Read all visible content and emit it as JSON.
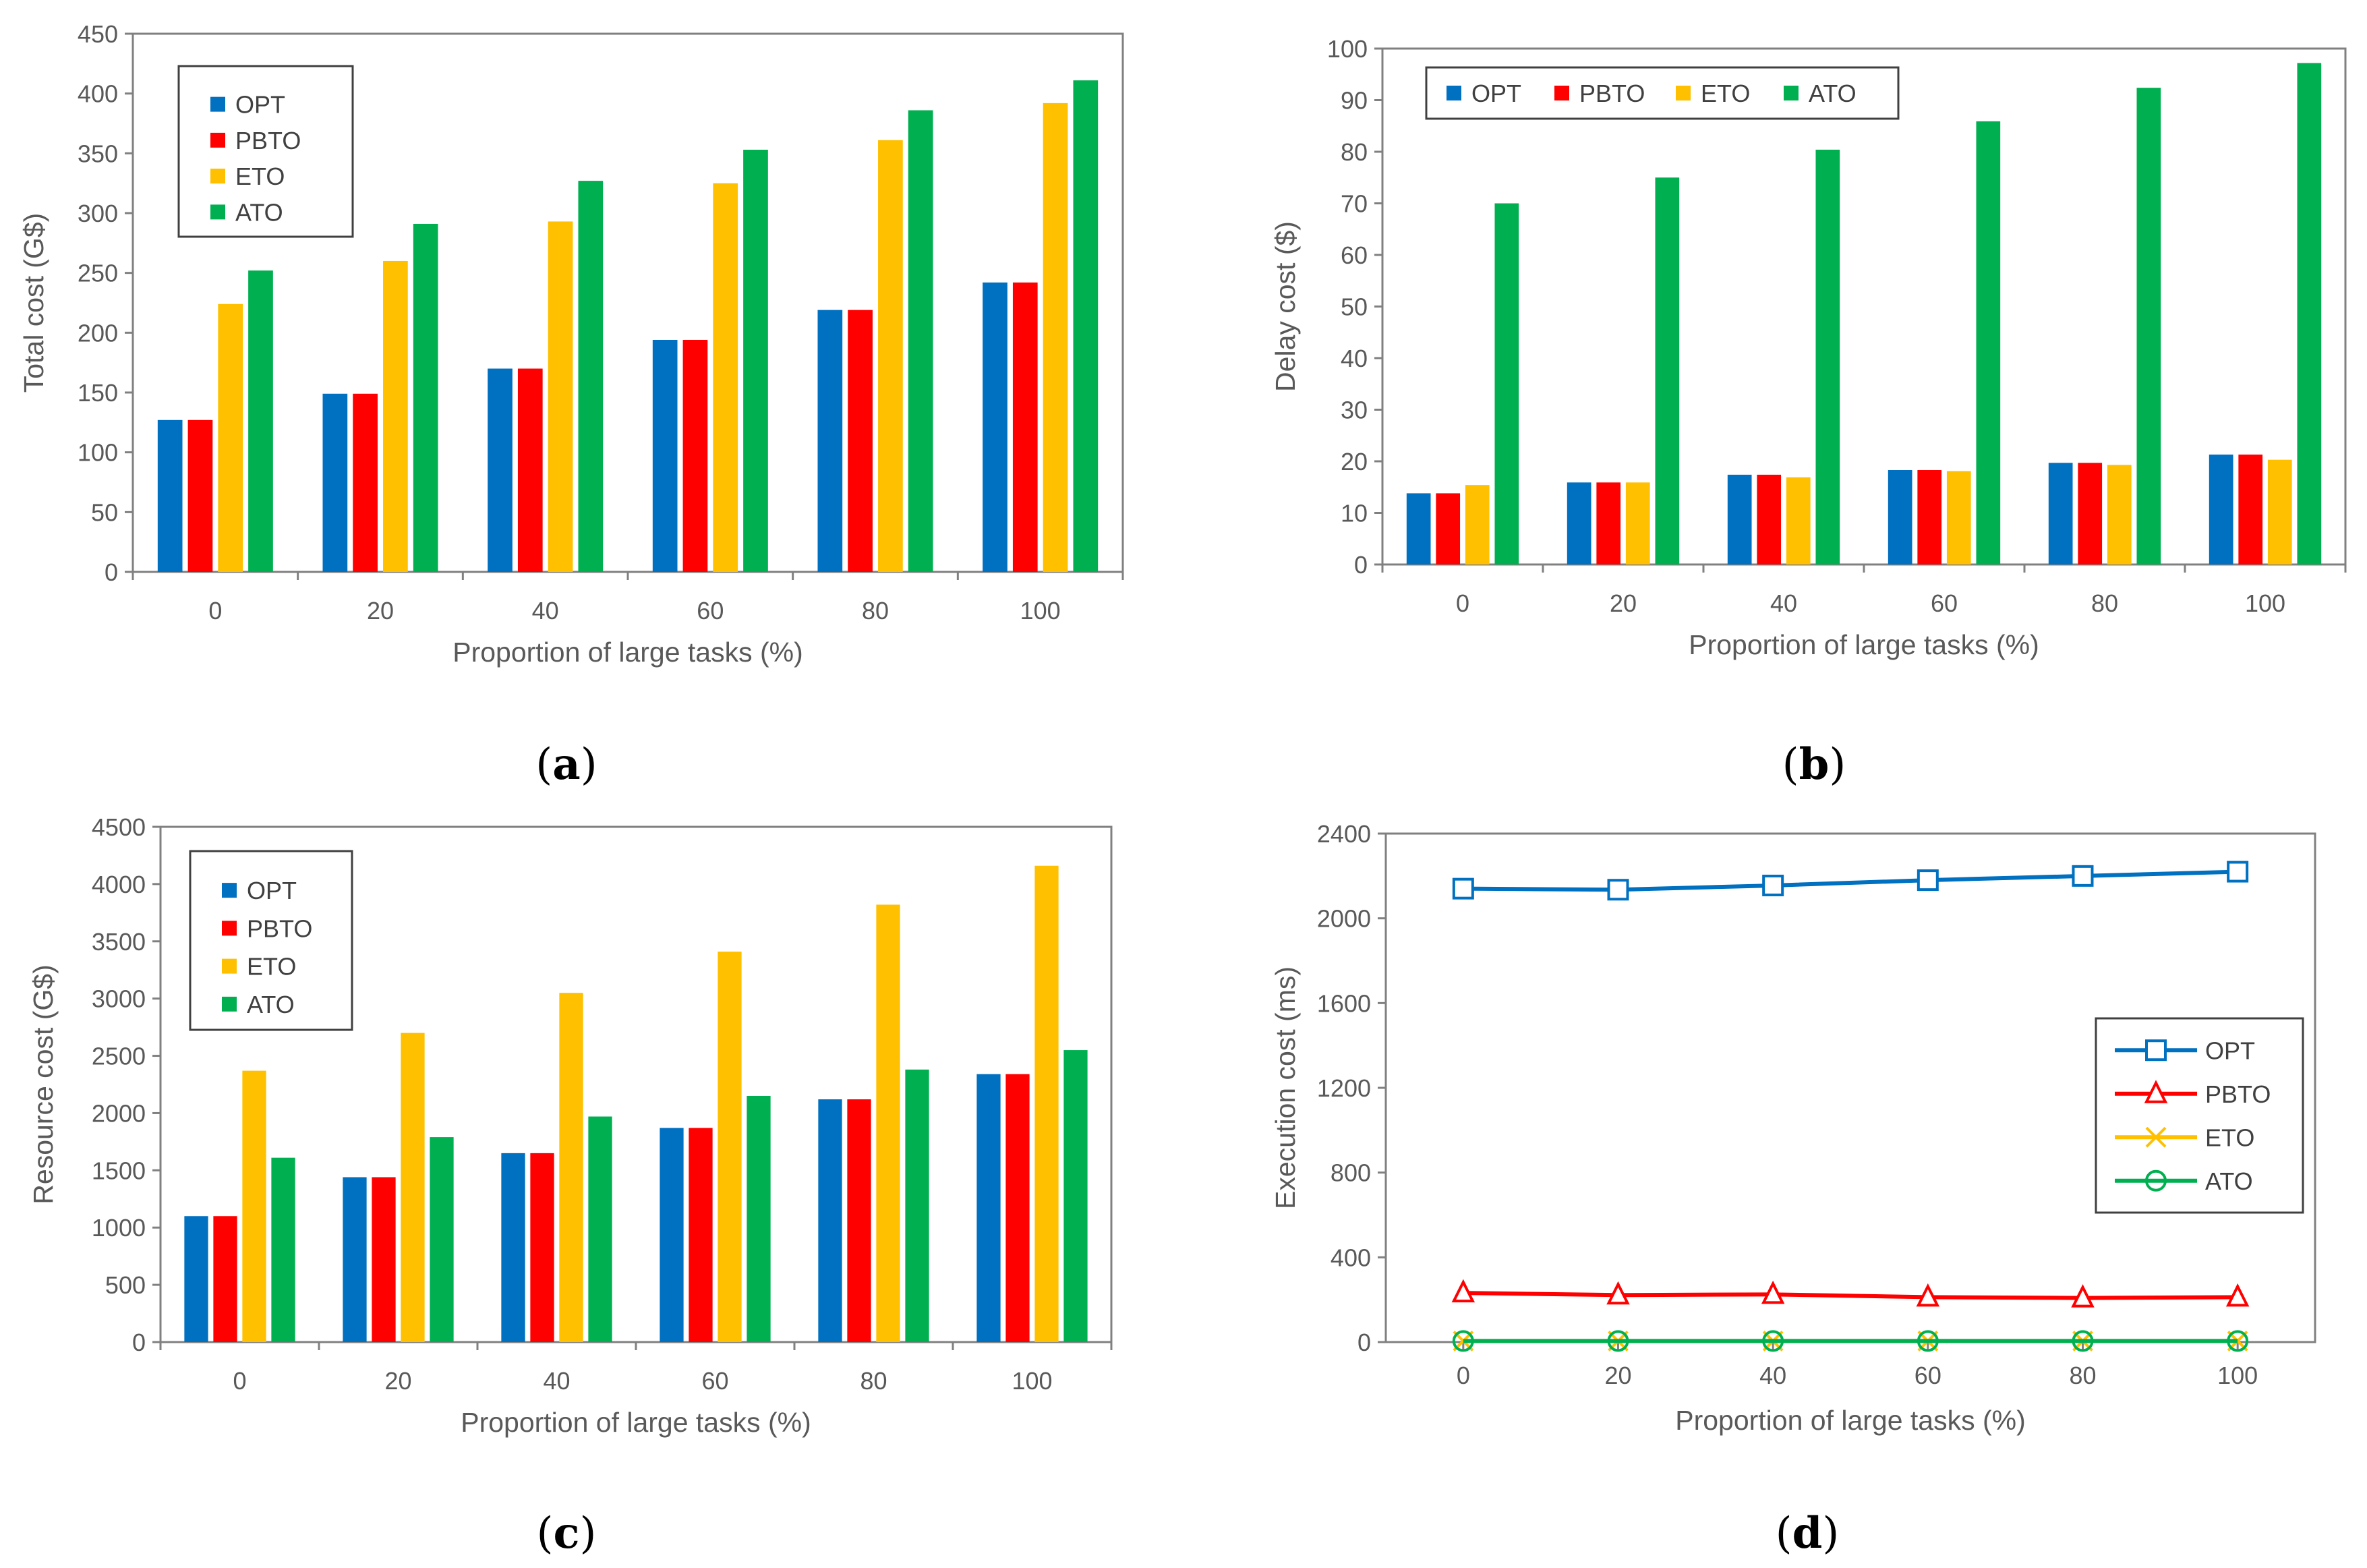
{
  "colors": {
    "OPT": "#0070C0",
    "PBTO": "#FF0000",
    "ETO": "#FFC000",
    "ATO": "#00B050",
    "axis": "#808080",
    "text": "#595959"
  },
  "chart_data": [
    {
      "id": "a",
      "type": "bar",
      "panel_label": "a",
      "xlabel": "Proportion of large tasks (%)",
      "ylabel": "Total cost (G$)",
      "ylim": [
        0,
        450
      ],
      "yticks": [
        0,
        50,
        100,
        150,
        200,
        250,
        300,
        350,
        400,
        450
      ],
      "categories": [
        "0",
        "20",
        "40",
        "60",
        "80",
        "100"
      ],
      "legend_position": "top-left",
      "legend_layout": "vertical",
      "series": [
        {
          "name": "OPT",
          "values": [
            127,
            149,
            170,
            194,
            219,
            242
          ]
        },
        {
          "name": "PBTO",
          "values": [
            127,
            149,
            170,
            194,
            219,
            242
          ]
        },
        {
          "name": "ETO",
          "values": [
            224,
            260,
            293,
            325,
            361,
            392
          ]
        },
        {
          "name": "ATO",
          "values": [
            252,
            291,
            327,
            353,
            386,
            411
          ]
        }
      ]
    },
    {
      "id": "b",
      "type": "bar",
      "panel_label": "b",
      "xlabel": "Proportion of large tasks (%)",
      "ylabel": "Delay cost ($)",
      "ylim": [
        0,
        100
      ],
      "yticks": [
        0,
        10,
        20,
        30,
        40,
        50,
        60,
        70,
        80,
        90,
        100
      ],
      "categories": [
        "0",
        "20",
        "40",
        "60",
        "80",
        "100"
      ],
      "legend_position": "top",
      "legend_layout": "horizontal",
      "series": [
        {
          "name": "OPT",
          "values": [
            13.8,
            15.9,
            17.4,
            18.3,
            19.7,
            21.3
          ]
        },
        {
          "name": "PBTO",
          "values": [
            13.8,
            15.9,
            17.4,
            18.3,
            19.7,
            21.3
          ]
        },
        {
          "name": "ETO",
          "values": [
            15.4,
            15.9,
            16.9,
            18.1,
            19.3,
            20.3
          ]
        },
        {
          "name": "ATO",
          "values": [
            70,
            75,
            80.4,
            85.9,
            92.4,
            97.2
          ]
        }
      ]
    },
    {
      "id": "c",
      "type": "bar",
      "panel_label": "c",
      "xlabel": "Proportion of large tasks (%)",
      "ylabel": "Resource cost (G$)",
      "ylim": [
        0,
        4500
      ],
      "yticks": [
        0,
        500,
        1000,
        1500,
        2000,
        2500,
        3000,
        3500,
        4000,
        4500
      ],
      "categories": [
        "0",
        "20",
        "40",
        "60",
        "80",
        "100"
      ],
      "legend_position": "top-left",
      "legend_layout": "vertical",
      "series": [
        {
          "name": "OPT",
          "values": [
            1100,
            1440,
            1650,
            1870,
            2120,
            2340
          ]
        },
        {
          "name": "PBTO",
          "values": [
            1100,
            1440,
            1650,
            1870,
            2120,
            2340
          ]
        },
        {
          "name": "ETO",
          "values": [
            2370,
            2700,
            3050,
            3410,
            3820,
            4160
          ]
        },
        {
          "name": "ATO",
          "values": [
            1610,
            1790,
            1970,
            2150,
            2380,
            2550
          ]
        }
      ]
    },
    {
      "id": "d",
      "type": "line",
      "panel_label": "d",
      "xlabel": "Proportion of large tasks (%)",
      "ylabel": "Execution cost (ms)",
      "ylim": [
        0,
        2400
      ],
      "yticks": [
        0,
        400,
        800,
        1200,
        1600,
        2000,
        2400
      ],
      "xlim": [
        -10,
        110
      ],
      "xticks": [
        0,
        20,
        40,
        60,
        80,
        100
      ],
      "grid": false,
      "legend_position": "right",
      "legend_layout": "vertical",
      "series": [
        {
          "name": "OPT",
          "marker": "square",
          "x": [
            0,
            20,
            40,
            60,
            80,
            100
          ],
          "values": [
            2140,
            2135,
            2155,
            2180,
            2200,
            2220
          ]
        },
        {
          "name": "PBTO",
          "marker": "triangle",
          "x": [
            0,
            20,
            40,
            60,
            80,
            100
          ],
          "values": [
            232,
            222,
            225,
            212,
            208,
            212
          ]
        },
        {
          "name": "ETO",
          "marker": "x",
          "x": [
            0,
            20,
            40,
            60,
            80,
            100
          ],
          "values": [
            5,
            5,
            5,
            5,
            5,
            5
          ]
        },
        {
          "name": "ATO",
          "marker": "circle",
          "x": [
            0,
            20,
            40,
            60,
            80,
            100
          ],
          "values": [
            5,
            5,
            5,
            5,
            5,
            5
          ]
        }
      ]
    }
  ]
}
